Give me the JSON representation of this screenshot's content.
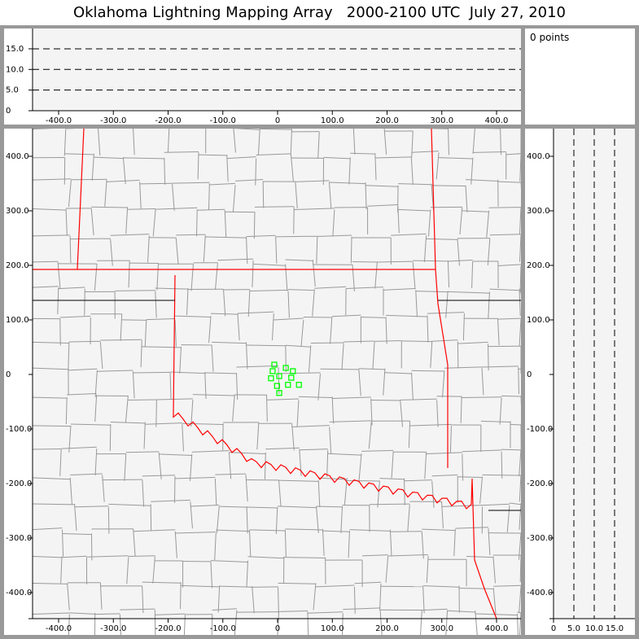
{
  "title": "Oklahoma Lightning Mapping Array   2000-2100 UTC  July 27, 2010",
  "info_panel": {
    "text": "0 points"
  },
  "colors": {
    "background": "#f4f4f4",
    "frame": "#999999",
    "state_border": "#ff0000",
    "county_border": "#999999",
    "source_marker": "#00ff00"
  },
  "chart_data": {
    "type": "scatter",
    "plan_view": {
      "xlim": [
        -450,
        445
      ],
      "ylim": [
        -445,
        450
      ],
      "x_ticks": [
        "-400.0",
        "-300.0",
        "-200.0",
        "-100.0",
        "0",
        "100.0",
        "200.0",
        "300.0",
        "400.0"
      ],
      "y_ticks": [
        "400.0",
        "300.0",
        "200.0",
        "100.0",
        "0",
        "-100.0",
        "-200.0",
        "-300.0",
        "-400.0"
      ],
      "marker": "open-square",
      "points": [
        [
          -6,
          18
        ],
        [
          15,
          12
        ],
        [
          -9,
          6
        ],
        [
          28,
          6
        ],
        [
          3,
          -3
        ],
        [
          -12,
          -7
        ],
        [
          25,
          -6
        ],
        [
          -1,
          -21
        ],
        [
          19,
          -19
        ],
        [
          39,
          -19
        ],
        [
          3,
          -34
        ]
      ]
    },
    "altitude_vs_x": {
      "xlim": [
        -450,
        445
      ],
      "ylim": [
        0,
        20
      ],
      "x_ticks": [
        "-400.0",
        "-300.0",
        "-200.0",
        "-100.0",
        "0",
        "100.0",
        "200.0",
        "300.0",
        "400.0"
      ],
      "y_ticks": [
        "15.0",
        "10.0",
        "5.0",
        "0"
      ],
      "dashed_levels": [
        5,
        10,
        15
      ]
    },
    "altitude_vs_y": {
      "xlim": [
        0,
        20
      ],
      "ylim": [
        -445,
        450
      ],
      "x_ticks": [
        "0",
        "5.0",
        "10.0",
        "15.0"
      ],
      "y_ticks": [
        "400.0",
        "300.0",
        "200.0",
        "100.0",
        "0",
        "-100.0",
        "-200.0",
        "-300.0",
        "-400.0"
      ],
      "dashed_levels": [
        5,
        10,
        15
      ]
    }
  }
}
